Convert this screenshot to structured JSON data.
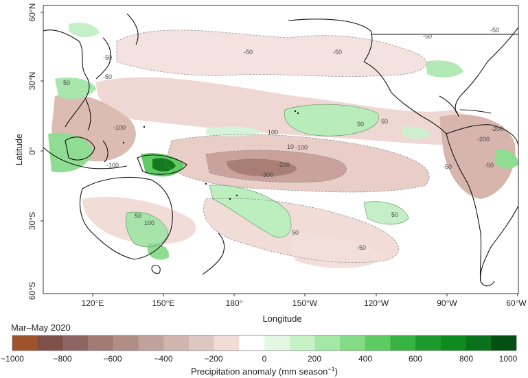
{
  "map": {
    "x_axis_label": "Longitude",
    "y_axis_label": "Latitude",
    "lon_ticks": [
      "120°E",
      "150°E",
      "180°",
      "150°W",
      "120°W",
      "90°W",
      "60°W"
    ],
    "lat_ticks": [
      "60°N",
      "30°N",
      "0°",
      "30°S",
      "60°S"
    ],
    "period": "Mar–May 2020",
    "contour_labels": [
      "-50",
      "-50",
      "-50",
      "50",
      "-50",
      "-50",
      "-50",
      "50",
      "-100",
      "100",
      "50",
      "-200",
      "10",
      "-100",
      "-100",
      "-200",
      "-300",
      "-50",
      "-50",
      "50",
      "100",
      "50",
      "50",
      "-50",
      "-200"
    ],
    "colors": {
      "strong_dry": "#9c5a3c",
      "moderate_dry": "#b98a7e",
      "weak_dry": "#efd8d3",
      "weak_wet": "#d8f3d8",
      "moderate_wet": "#7fd884",
      "strong_wet": "#0e6b18",
      "coastline": "#111111"
    }
  },
  "colorbar": {
    "tick_labels": [
      "−1000",
      "−800",
      "−600",
      "−400",
      "−200",
      "0",
      "200",
      "400",
      "600",
      "800",
      "1000"
    ],
    "unit_label": "Precipitation anomaly (mm season",
    "unit_superscript": "−1",
    "unit_close": ")",
    "colors": [
      "#a0522d",
      "#7f4f4a",
      "#8e6560",
      "#a17b74",
      "#b08e86",
      "#c0a29b",
      "#cfb5ae",
      "#dfc7c1",
      "#f2dcd8",
      "#ffffff",
      "#e3f8e3",
      "#c6f2c7",
      "#a5e8a6",
      "#84db86",
      "#5ccb62",
      "#37b342",
      "#1d9a2b",
      "#0f8a1e",
      "#08731a",
      "#044f12"
    ]
  }
}
